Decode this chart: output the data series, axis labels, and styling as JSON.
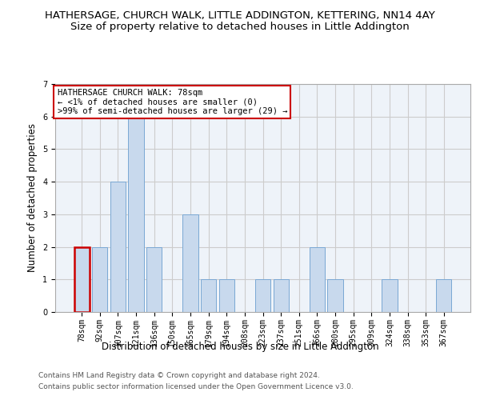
{
  "title": "HATHERSAGE, CHURCH WALK, LITTLE ADDINGTON, KETTERING, NN14 4AY",
  "subtitle": "Size of property relative to detached houses in Little Addington",
  "xlabel": "Distribution of detached houses by size in Little Addington",
  "ylabel": "Number of detached properties",
  "categories": [
    "78sqm",
    "92sqm",
    "107sqm",
    "121sqm",
    "136sqm",
    "150sqm",
    "165sqm",
    "179sqm",
    "194sqm",
    "208sqm",
    "223sqm",
    "237sqm",
    "251sqm",
    "266sqm",
    "280sqm",
    "295sqm",
    "309sqm",
    "324sqm",
    "338sqm",
    "353sqm",
    "367sqm"
  ],
  "values": [
    2,
    2,
    4,
    6,
    2,
    0,
    3,
    1,
    1,
    0,
    1,
    1,
    0,
    2,
    1,
    0,
    0,
    1,
    0,
    0,
    1
  ],
  "bar_color": "#c8d9ed",
  "bar_edge_color": "#7aa8d4",
  "highlight_index": 0,
  "annotation_box_text": "HATHERSAGE CHURCH WALK: 78sqm\n← <1% of detached houses are smaller (0)\n>99% of semi-detached houses are larger (29) →",
  "annotation_box_color": "#ffffff",
  "annotation_box_edge_color": "#cc0000",
  "ylim": [
    0,
    7
  ],
  "yticks": [
    0,
    1,
    2,
    3,
    4,
    5,
    6,
    7
  ],
  "grid_color": "#cccccc",
  "bg_color": "#eef3f9",
  "footer_line1": "Contains HM Land Registry data © Crown copyright and database right 2024.",
  "footer_line2": "Contains public sector information licensed under the Open Government Licence v3.0.",
  "title_fontsize": 9.5,
  "subtitle_fontsize": 9.5,
  "xlabel_fontsize": 8.5,
  "ylabel_fontsize": 8.5,
  "tick_fontsize": 7,
  "annotation_fontsize": 7.5,
  "footer_fontsize": 6.5
}
